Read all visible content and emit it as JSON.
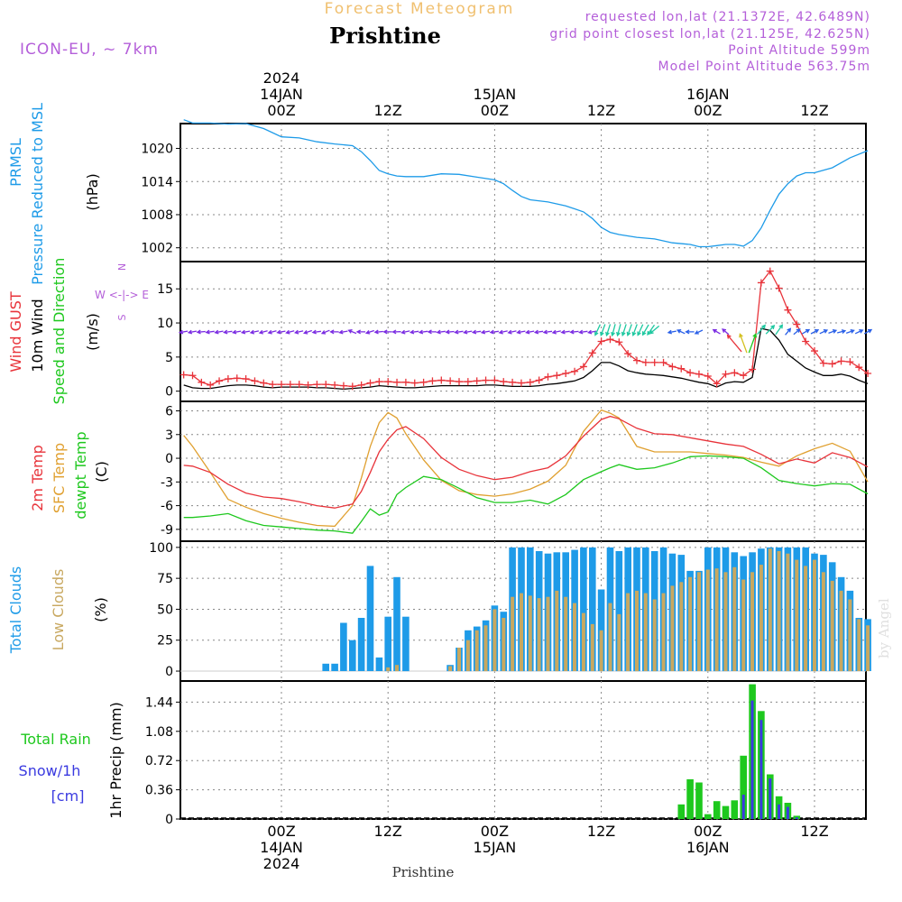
{
  "header": {
    "super_title": "Forecast Meteogram",
    "title": "Prishtine",
    "model": "ICON-EU, ~ 7km",
    "requested": "requested lon,lat (21.1372E, 42.6489N)",
    "grid_point": "grid point closest lon,lat (21.125E, 42.625N)",
    "point_altitude": "Point Altitude 599m",
    "model_altitude": "Model Point Altitude 563.75m",
    "watermark": "by Angel",
    "footer_station": "Prishtine"
  },
  "colors": {
    "pressure": "#1e9be8",
    "gust": "#e8333a",
    "wind": "#000000",
    "speed_dir_label": "#1ec81e",
    "arrow": "#8a2be2",
    "temp": "#e8333a",
    "sfc": "#e0a030",
    "dewpt": "#1ec81e",
    "total_cloud": "#1e9be8",
    "low_cloud": "#c8a860",
    "rain": "#1ec81e",
    "snow": "#3a3ae0",
    "purple": "#b45fd9",
    "header_orange": "#f0c070"
  },
  "time_axis": {
    "top_labels": [
      {
        "hour": 0,
        "lines": [
          "2024",
          "14JAN",
          "00Z"
        ]
      },
      {
        "hour": 12,
        "lines": [
          "12Z"
        ]
      },
      {
        "hour": 24,
        "lines": [
          "15JAN",
          "00Z"
        ]
      },
      {
        "hour": 36,
        "lines": [
          "12Z"
        ]
      },
      {
        "hour": 48,
        "lines": [
          "16JAN",
          "00Z"
        ]
      },
      {
        "hour": 60,
        "lines": [
          "12Z"
        ]
      }
    ],
    "bottom_labels": [
      {
        "hour": 0,
        "lines": [
          "00Z",
          "14JAN",
          "2024"
        ]
      },
      {
        "hour": 12,
        "lines": [
          "12Z"
        ]
      },
      {
        "hour": 24,
        "lines": [
          "00Z",
          "15JAN"
        ]
      },
      {
        "hour": 36,
        "lines": [
          "12Z"
        ]
      },
      {
        "hour": 48,
        "lines": [
          "00Z",
          "16JAN"
        ]
      },
      {
        "hour": 60,
        "lines": [
          "12Z"
        ]
      }
    ]
  },
  "chart_data": [
    {
      "type": "line",
      "id": "pressure",
      "ylabel": [
        "PRMSL",
        "Pressure Reduced to MSL"
      ],
      "unit": "(hPa)",
      "yticks": [
        1002,
        1008,
        1014,
        1020
      ],
      "ylim": [
        999.5,
        1024.5
      ],
      "x": [
        -11,
        -10,
        -8,
        -6,
        -4,
        -2,
        0,
        2,
        4,
        6,
        8,
        9,
        10,
        11,
        12,
        13,
        14,
        16,
        18,
        20,
        22,
        24,
        25,
        26,
        27,
        28,
        30,
        32,
        34,
        35,
        36,
        37,
        38,
        40,
        42,
        44,
        46,
        47,
        48,
        49,
        50,
        51,
        52,
        53,
        54,
        55,
        56,
        57,
        58,
        59,
        60,
        62,
        64,
        66
      ],
      "series": [
        {
          "name": "PRMSL",
          "values": [
            1025.2,
            1024.6,
            1024.6,
            1024.4,
            1024.5,
            1023.6,
            1022.1,
            1021.9,
            1021.2,
            1020.8,
            1020.5,
            1019.4,
            1017.8,
            1016.0,
            1015.4,
            1015.0,
            1014.9,
            1014.9,
            1015.4,
            1015.3,
            1014.8,
            1014.3,
            1013.6,
            1012.4,
            1011.3,
            1010.7,
            1010.3,
            1009.6,
            1008.5,
            1007.3,
            1005.7,
            1004.8,
            1004.4,
            1003.9,
            1003.6,
            1002.9,
            1002.6,
            1002.2,
            1002.2,
            1002.4,
            1002.6,
            1002.6,
            1002.3,
            1003.3,
            1005.6,
            1008.8,
            1011.7,
            1013.6,
            1015.0,
            1015.6,
            1015.6,
            1016.5,
            1018.3,
            1019.6
          ]
        }
      ]
    },
    {
      "type": "line",
      "id": "wind",
      "ylabel": [
        "Wind GUST",
        "10m Wind",
        "Speed and Direction"
      ],
      "unit": "(m/s)",
      "compass": [
        "N",
        "W <-|-> E",
        "S"
      ],
      "yticks": [
        0,
        5,
        10,
        15
      ],
      "ylim": [
        -1.5,
        19
      ],
      "x": [
        -11,
        -10,
        -9,
        -8,
        -7,
        -6,
        -5,
        -4,
        -3,
        -2,
        -1,
        0,
        1,
        2,
        3,
        4,
        5,
        6,
        7,
        8,
        9,
        10,
        11,
        12,
        13,
        14,
        15,
        16,
        17,
        18,
        19,
        20,
        21,
        22,
        23,
        24,
        25,
        26,
        27,
        28,
        29,
        30,
        31,
        32,
        33,
        34,
        35,
        36,
        37,
        38,
        39,
        40,
        41,
        42,
        43,
        44,
        45,
        46,
        47,
        48,
        49,
        50,
        51,
        52,
        53,
        54,
        55,
        56,
        57,
        58,
        59,
        60,
        61,
        62,
        63,
        64,
        65,
        66
      ],
      "series": [
        {
          "name": "Wind GUST",
          "values": [
            2.4,
            2.3,
            1.3,
            0.9,
            1.5,
            1.8,
            1.9,
            1.8,
            1.5,
            1.2,
            1.0,
            1.0,
            1.0,
            1.0,
            0.9,
            1.0,
            1.0,
            0.9,
            0.8,
            0.7,
            0.9,
            1.2,
            1.4,
            1.4,
            1.3,
            1.3,
            1.2,
            1.3,
            1.5,
            1.6,
            1.5,
            1.4,
            1.4,
            1.5,
            1.6,
            1.6,
            1.4,
            1.3,
            1.2,
            1.3,
            1.6,
            2.1,
            2.3,
            2.6,
            2.9,
            3.6,
            5.6,
            7.3,
            7.6,
            7.2,
            5.5,
            4.5,
            4.2,
            4.2,
            4.2,
            3.6,
            3.3,
            2.7,
            2.5,
            2.2,
            1.1,
            2.5,
            2.7,
            2.3,
            3.2,
            15.9,
            17.6,
            15.1,
            11.9,
            9.8,
            7.3,
            5.9,
            4.1,
            4.0,
            4.4,
            4.3,
            3.5,
            2.6
          ]
        },
        {
          "name": "10m Wind",
          "values": [
            0.9,
            0.5,
            0.4,
            0.4,
            0.6,
            0.8,
            0.9,
            0.9,
            0.8,
            0.6,
            0.5,
            0.6,
            0.6,
            0.6,
            0.6,
            0.5,
            0.5,
            0.4,
            0.3,
            0.4,
            0.5,
            0.6,
            0.8,
            0.7,
            0.6,
            0.5,
            0.5,
            0.6,
            0.7,
            0.8,
            0.8,
            0.8,
            0.8,
            0.8,
            0.9,
            0.9,
            0.8,
            0.7,
            0.7,
            0.7,
            0.8,
            1.0,
            1.1,
            1.3,
            1.5,
            2.0,
            3.0,
            4.2,
            4.2,
            3.7,
            3.0,
            2.7,
            2.5,
            2.4,
            2.3,
            2.1,
            1.9,
            1.6,
            1.3,
            1.1,
            0.6,
            1.2,
            1.4,
            1.3,
            2.0,
            9.2,
            8.9,
            7.5,
            5.4,
            4.4,
            3.4,
            2.8,
            2.3,
            2.3,
            2.5,
            2.2,
            1.6,
            1.1
          ]
        }
      ],
      "wind_arrows": {
        "x": [
          -11,
          -10,
          -9,
          -8,
          -7,
          -6,
          -5,
          -4,
          -3,
          -2,
          -1,
          0,
          1,
          2,
          3,
          4,
          5,
          6,
          7,
          8,
          9,
          10,
          11,
          12,
          13,
          14,
          15,
          16,
          17,
          18,
          19,
          20,
          21,
          22,
          23,
          24,
          25,
          26,
          27,
          28,
          29,
          30,
          31,
          32,
          33,
          34,
          35,
          35.6,
          36.2,
          36.8,
          37.4,
          38,
          38.6,
          39.2,
          39.8,
          40.4,
          41,
          41.6,
          42,
          44,
          45,
          46,
          47,
          49,
          50,
          51,
          52,
          53,
          54,
          55,
          56,
          57,
          58,
          59,
          60,
          61,
          62,
          63,
          64,
          65,
          66
        ],
        "dir": [
          260,
          260,
          265,
          262,
          260,
          262,
          260,
          260,
          258,
          255,
          255,
          260,
          255,
          258,
          252,
          262,
          248,
          270,
          260,
          292,
          270,
          252,
          265,
          270,
          268,
          258,
          262,
          262,
          270,
          262,
          265,
          262,
          260,
          262,
          260,
          262,
          258,
          258,
          260,
          260,
          262,
          262,
          258,
          262,
          264,
          262,
          260,
          205,
          200,
          198,
          195,
          195,
          198,
          200,
          200,
          205,
          210,
          215,
          230,
          260,
          295,
          270,
          245,
          300,
          310,
          320,
          340,
          20,
          40,
          45,
          35,
          40,
          50,
          60,
          62,
          65,
          70,
          75,
          70,
          65,
          60
        ],
        "color": [
          "p",
          "p",
          "p",
          "p",
          "p",
          "p",
          "p",
          "p",
          "p",
          "p",
          "p",
          "p",
          "p",
          "p",
          "p",
          "p",
          "p",
          "p",
          "p",
          "p",
          "p",
          "p",
          "p",
          "p",
          "p",
          "p",
          "p",
          "p",
          "p",
          "p",
          "p",
          "p",
          "p",
          "p",
          "p",
          "p",
          "p",
          "p",
          "p",
          "p",
          "p",
          "p",
          "p",
          "p",
          "p",
          "p",
          "p",
          "t",
          "t",
          "t",
          "t",
          "t",
          "t",
          "t",
          "t",
          "t",
          "t",
          "t",
          "t",
          "b",
          "b",
          "b",
          "b",
          "p",
          "p",
          "r",
          "y",
          "g",
          "t",
          "t",
          "t",
          "b",
          "b",
          "b",
          "b",
          "b",
          "b",
          "b",
          "b",
          "b",
          "b"
        ]
      }
    },
    {
      "type": "line",
      "id": "temperature",
      "ylabel": [
        "2m Temp",
        "SFC Temp",
        "dewpt Temp"
      ],
      "unit": "(C)",
      "yticks": [
        -9,
        -6,
        -3,
        0,
        3,
        6
      ],
      "ylim": [
        -10.5,
        7.2
      ],
      "x": [
        -11,
        -10,
        -8,
        -6,
        -4,
        -2,
        0,
        2,
        4,
        6,
        8,
        9,
        10,
        11,
        12,
        13,
        14,
        16,
        18,
        20,
        22,
        24,
        26,
        28,
        30,
        32,
        34,
        36,
        37,
        38,
        40,
        42,
        44,
        46,
        48,
        50,
        52,
        54,
        56,
        58,
        60,
        62,
        64,
        66
      ],
      "series": [
        {
          "name": "2m Temp",
          "values": [
            -0.9,
            -1.0,
            -1.8,
            -3.3,
            -4.4,
            -4.9,
            -5.1,
            -5.5,
            -6.0,
            -6.3,
            -5.8,
            -4.2,
            -1.8,
            0.8,
            2.4,
            3.6,
            4.0,
            2.5,
            0.1,
            -1.4,
            -2.2,
            -2.7,
            -2.4,
            -1.7,
            -1.2,
            0.3,
            2.8,
            4.9,
            5.3,
            5.0,
            3.8,
            3.1,
            3.0,
            2.6,
            2.2,
            1.8,
            1.5,
            0.5,
            -0.7,
            -0.1,
            -0.6,
            0.7,
            0.1,
            -1.1
          ]
        },
        {
          "name": "SFC Temp",
          "values": [
            2.9,
            1.5,
            -1.8,
            -5.2,
            -6.2,
            -7.0,
            -7.6,
            -8.1,
            -8.5,
            -8.6,
            -6.0,
            -2.5,
            1.5,
            4.5,
            5.8,
            5.1,
            3.1,
            -0.2,
            -2.8,
            -4.1,
            -4.6,
            -4.8,
            -4.5,
            -3.9,
            -2.9,
            -0.9,
            3.4,
            6.1,
            5.7,
            5.1,
            1.5,
            0.8,
            0.8,
            0.8,
            0.6,
            0.4,
            0.1,
            -0.5,
            -1.0,
            0.3,
            1.2,
            1.9,
            0.9,
            -3.0
          ]
        },
        {
          "name": "dewpt Temp",
          "values": [
            -7.5,
            -7.5,
            -7.3,
            -7.0,
            -7.9,
            -8.5,
            -8.7,
            -8.9,
            -9.1,
            -9.2,
            -9.5,
            -8.0,
            -6.4,
            -7.2,
            -6.8,
            -4.6,
            -3.7,
            -2.3,
            -2.7,
            -3.8,
            -5.0,
            -5.6,
            -5.6,
            -5.3,
            -5.8,
            -4.6,
            -2.7,
            -1.7,
            -1.2,
            -0.8,
            -1.4,
            -1.2,
            -0.6,
            0.2,
            0.3,
            0.2,
            0.0,
            -1.2,
            -2.8,
            -3.2,
            -3.5,
            -3.2,
            -3.3,
            -4.5
          ]
        }
      ]
    },
    {
      "type": "bar",
      "id": "clouds",
      "ylabel": [
        "Total Clouds",
        "Low Clouds"
      ],
      "unit": "(%)",
      "yticks": [
        0,
        25,
        50,
        75,
        100
      ],
      "ylim": [
        -8,
        105
      ],
      "x": [
        5,
        6,
        7,
        8,
        9,
        10,
        11,
        12,
        13,
        14,
        15,
        16,
        19,
        20,
        21,
        22,
        23,
        24,
        25,
        26,
        27,
        28,
        29,
        30,
        31,
        32,
        33,
        34,
        35,
        36,
        37,
        38,
        39,
        40,
        41,
        42,
        43,
        44,
        45,
        46,
        47,
        48,
        49,
        50,
        51,
        52,
        53,
        54,
        55,
        56,
        57,
        58,
        59,
        60,
        61,
        62,
        63,
        64,
        65,
        66
      ],
      "series": [
        {
          "name": "Total Clouds",
          "values": [
            6,
            6,
            39,
            25,
            43,
            85,
            11,
            44,
            76,
            44,
            0,
            0,
            5,
            19,
            33,
            36,
            41,
            53,
            48,
            100,
            100,
            100,
            97,
            95,
            96,
            96,
            98,
            100,
            100,
            66,
            100,
            97,
            100,
            100,
            100,
            97,
            100,
            95,
            94,
            81,
            81,
            100,
            100,
            100,
            96,
            93,
            96,
            99,
            100,
            100,
            100,
            100,
            100,
            95,
            94,
            88,
            76,
            65,
            43,
            42
          ]
        },
        {
          "name": "Low Clouds",
          "values": [
            0,
            0,
            0,
            0,
            0,
            0,
            0,
            3,
            5,
            0,
            0,
            0,
            4,
            19,
            25,
            33,
            37,
            50,
            43,
            60,
            63,
            61,
            59,
            60,
            65,
            60,
            55,
            47,
            38,
            33,
            55,
            46,
            63,
            65,
            63,
            58,
            63,
            69,
            72,
            76,
            80,
            82,
            83,
            80,
            84,
            74,
            80,
            86,
            99,
            97,
            95,
            90,
            85,
            90,
            80,
            73,
            65,
            58,
            42,
            37
          ]
        }
      ]
    },
    {
      "type": "bar",
      "id": "precip",
      "ylabel": [
        "Total   Rain",
        "Snow/1h",
        "[cm]"
      ],
      "unit": "1hr Precip (mm)",
      "yticks": [
        0,
        0.36,
        0.72,
        1.08,
        1.44
      ],
      "ylim": [
        0,
        1.7
      ],
      "x": [
        45,
        46,
        47,
        48,
        49,
        50,
        51,
        52,
        53,
        54,
        55,
        56,
        57,
        58,
        59,
        60
      ],
      "series": [
        {
          "name": "Total Rain",
          "values": [
            0.18,
            0.49,
            0.45,
            0.06,
            0.22,
            0.16,
            0.23,
            0.78,
            1.66,
            1.33,
            0.55,
            0.28,
            0.2,
            0.04,
            0,
            0
          ]
        },
        {
          "name": "Snow/1h",
          "values": [
            0,
            0,
            0,
            0,
            0,
            0,
            0,
            0.3,
            1.46,
            1.22,
            0.5,
            0.18,
            0.15,
            0.02,
            0,
            0
          ]
        }
      ]
    }
  ]
}
